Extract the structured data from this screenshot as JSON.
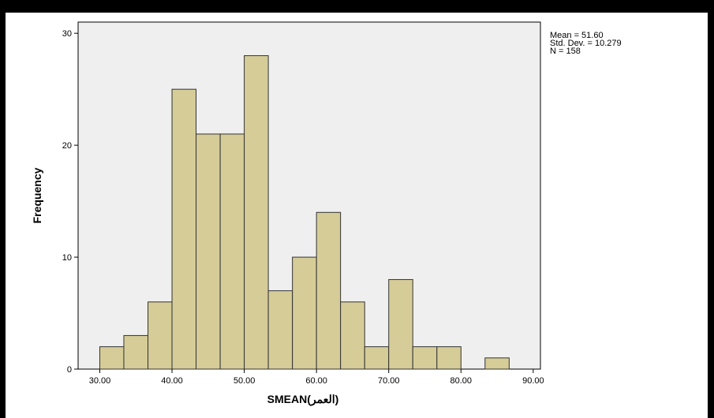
{
  "chart_data": {
    "type": "bar",
    "title": "",
    "xlabel": "SMEAN(العمر)",
    "ylabel": "Frequency",
    "bin_edges": [
      30,
      33.33,
      36.67,
      40,
      43.33,
      46.67,
      50,
      53.33,
      56.67,
      60,
      63.33,
      66.67,
      70,
      73.33,
      76.67,
      80,
      83.33,
      86.67
    ],
    "values": [
      2,
      3,
      6,
      25,
      21,
      21,
      28,
      7,
      10,
      14,
      6,
      2,
      8,
      2,
      2,
      0,
      1
    ],
    "xlim": [
      27,
      91
    ],
    "ylim": [
      0,
      31
    ],
    "x_ticks": [
      "30.00",
      "40.00",
      "50.00",
      "60.00",
      "70.00",
      "80.00",
      "90.00"
    ],
    "y_ticks": [
      "0",
      "10",
      "20",
      "30"
    ],
    "stats": {
      "mean": "Mean = 51.60",
      "std": "Std. Dev. = 10.279",
      "n": "N = 158"
    },
    "colors": {
      "bar_fill": "#d6cc98",
      "bar_stroke": "#333333",
      "plot_bg": "#efefef"
    }
  }
}
